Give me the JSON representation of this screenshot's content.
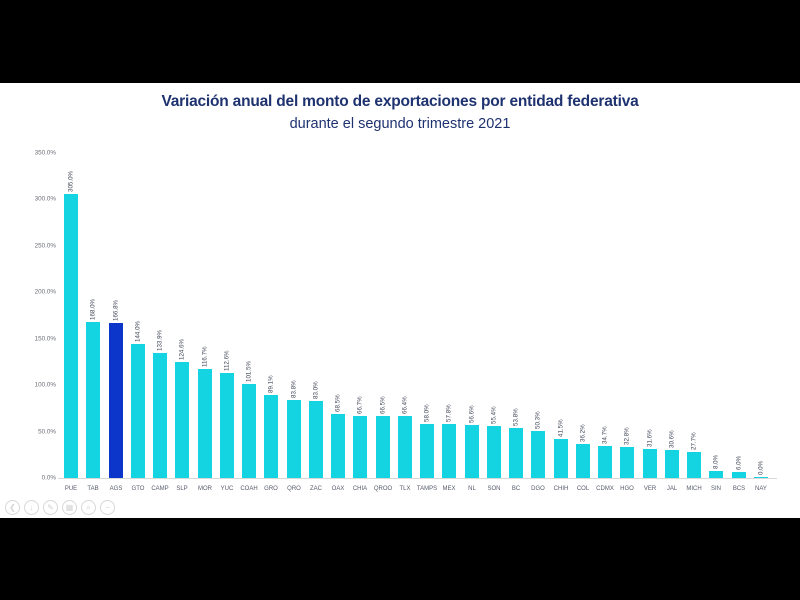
{
  "page": {
    "background_color": "#000000",
    "canvas_color": "#ffffff"
  },
  "chart_data": {
    "type": "bar",
    "title": "Variación anual del monto de exportaciones por entidad federativa",
    "subtitle": "durante el segundo trimestre 2021",
    "title_color": "#1e3270",
    "bar_color": "#14d4e2",
    "highlight_color": "#0b36c9",
    "highlight_category": "AGS",
    "categories": [
      "PUE",
      "TAB",
      "AGS",
      "GTO",
      "CAMP",
      "SLP",
      "MOR",
      "YUC",
      "COAH",
      "GRO",
      "QRO",
      "ZAC",
      "OAX",
      "CHIA",
      "QROO",
      "TLX",
      "TAMPS",
      "MEX",
      "NL",
      "SON",
      "BC",
      "DGO",
      "CHIH",
      "COL",
      "CDMX",
      "HGO",
      "VER",
      "JAL",
      "MICH",
      "SIN",
      "BCS",
      "NAY"
    ],
    "values": [
      305.0,
      168.0,
      166.8,
      144.0,
      133.9,
      124.6,
      116.7,
      112.6,
      101.5,
      89.1,
      83.8,
      83.0,
      68.5,
      66.7,
      66.5,
      66.4,
      58.0,
      57.8,
      56.6,
      55.4,
      53.8,
      50.3,
      41.5,
      36.2,
      34.7,
      32.8,
      31.6,
      30.6,
      27.7,
      8.0,
      6.0,
      0.0
    ],
    "value_labels": [
      "305.0%",
      "168.0%",
      "166.8%",
      "144.0%",
      "133.9%",
      "124.6%",
      "116.7%",
      "112.6%",
      "101.5%",
      "89.1%",
      "83.8%",
      "83.0%",
      "68.5%",
      "66.7%",
      "66.5%",
      "66.4%",
      "58.0%",
      "57.8%",
      "56.6%",
      "55.4%",
      "53.8%",
      "50.3%",
      "41.5%",
      "36.2%",
      "34.7%",
      "32.8%",
      "31.6%",
      "30.6%",
      "27.7%",
      "8.0%",
      "6.0%",
      "0.0%"
    ],
    "xlabel": "",
    "ylabel": "",
    "ylim": [
      0,
      350
    ],
    "y_tick_labels": [
      "0.0%",
      "50.0%",
      "100.0%",
      "150.0%",
      "200.0%",
      "250.0%",
      "300.0%",
      "350.0%"
    ],
    "grid": false,
    "legend": false
  },
  "player_controls": {
    "icons": [
      {
        "name": "back-arrow-icon",
        "glyph": "❮"
      },
      {
        "name": "down-arrow-icon",
        "glyph": "↓"
      },
      {
        "name": "pencil-icon",
        "glyph": "✎"
      },
      {
        "name": "grid-icon",
        "glyph": "▦"
      },
      {
        "name": "zoom-icon",
        "glyph": "⌕"
      },
      {
        "name": "minus-icon",
        "glyph": "−"
      }
    ]
  }
}
